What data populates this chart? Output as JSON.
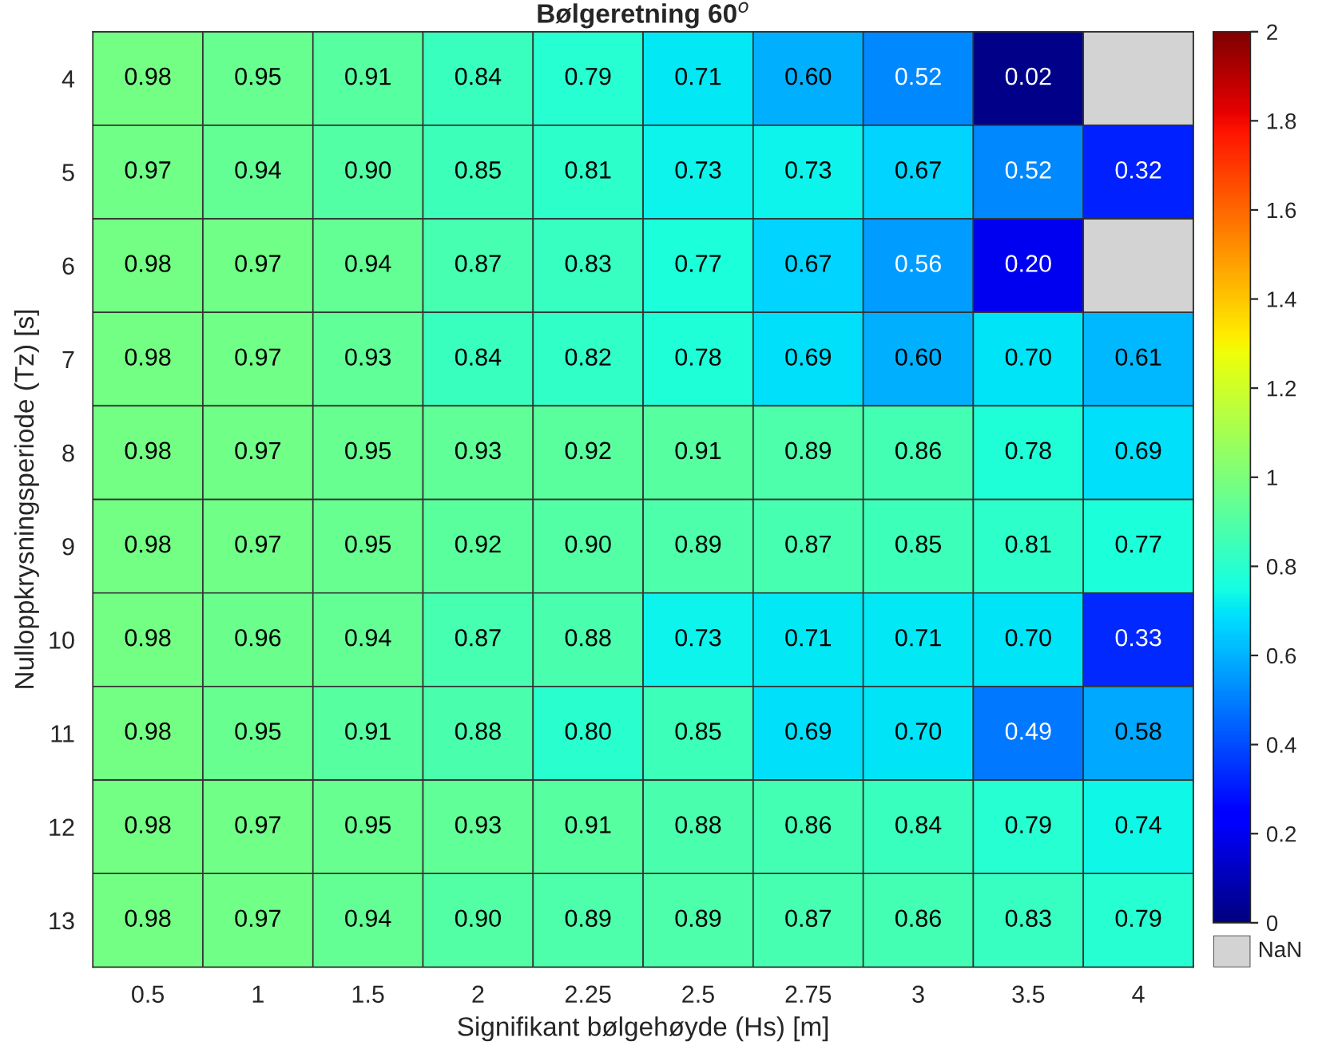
{
  "chart_data": {
    "type": "heatmap",
    "title": "Bølgeretning 60$^{o}$",
    "xlabel": "Signifikant bølgehøyde (Hs) [m]",
    "ylabel": "Nulloppkrysningsperiode (Tz) [s]",
    "categories": [
      "0.5",
      "1",
      "1.5",
      "2",
      "2.25",
      "2.5",
      "2.75",
      "3",
      "3.5",
      "4"
    ],
    "y_categories": [
      "4",
      "5",
      "6",
      "7",
      "8",
      "9",
      "10",
      "11",
      "12",
      "13"
    ],
    "cells": [
      [
        0.98,
        0.95,
        0.91,
        0.84,
        0.79,
        0.71,
        0.6,
        0.52,
        0.02,
        null
      ],
      [
        0.97,
        0.94,
        0.9,
        0.85,
        0.81,
        0.73,
        0.73,
        0.67,
        0.52,
        0.32
      ],
      [
        0.98,
        0.97,
        0.94,
        0.87,
        0.83,
        0.77,
        0.67,
        0.56,
        0.2,
        null
      ],
      [
        0.98,
        0.97,
        0.93,
        0.84,
        0.82,
        0.78,
        0.69,
        0.6,
        0.7,
        0.61
      ],
      [
        0.98,
        0.97,
        0.95,
        0.93,
        0.92,
        0.91,
        0.89,
        0.86,
        0.78,
        0.69
      ],
      [
        0.98,
        0.97,
        0.95,
        0.92,
        0.9,
        0.89,
        0.87,
        0.85,
        0.81,
        0.77
      ],
      [
        0.98,
        0.96,
        0.94,
        0.87,
        0.88,
        0.73,
        0.71,
        0.71,
        0.7,
        0.33
      ],
      [
        0.98,
        0.95,
        0.91,
        0.88,
        0.8,
        0.85,
        0.69,
        0.7,
        0.49,
        0.58
      ],
      [
        0.98,
        0.97,
        0.95,
        0.93,
        0.91,
        0.88,
        0.86,
        0.84,
        0.79,
        0.74
      ],
      [
        0.98,
        0.97,
        0.94,
        0.9,
        0.89,
        0.89,
        0.87,
        0.86,
        0.83,
        0.79
      ]
    ],
    "cell_labels": [
      [
        "0.98",
        "0.95",
        "0.91",
        "0.84",
        "0.79",
        "0.71",
        "0.60",
        "0.52",
        "0.02",
        null
      ],
      [
        "0.97",
        "0.94",
        "0.90",
        "0.85",
        "0.81",
        "0.73",
        "0.73",
        "0.67",
        "0.52",
        "0.32"
      ],
      [
        "0.98",
        "0.97",
        "0.94",
        "0.87",
        "0.83",
        "0.77",
        "0.67",
        "0.56",
        "0.20",
        null
      ],
      [
        "0.98",
        "0.97",
        "0.93",
        "0.84",
        "0.82",
        "0.78",
        "0.69",
        "0.60",
        "0.70",
        "0.61"
      ],
      [
        "0.98",
        "0.97",
        "0.95",
        "0.93",
        "0.92",
        "0.91",
        "0.89",
        "0.86",
        "0.78",
        "0.69"
      ],
      [
        "0.98",
        "0.97",
        "0.95",
        "0.92",
        "0.90",
        "0.89",
        "0.87",
        "0.85",
        "0.81",
        "0.77"
      ],
      [
        "0.98",
        "0.96",
        "0.94",
        "0.87",
        "0.88",
        "0.73",
        "0.71",
        "0.71",
        "0.70",
        "0.33"
      ],
      [
        "0.98",
        "0.95",
        "0.91",
        "0.88",
        "0.80",
        "0.85",
        "0.69",
        "0.70",
        "0.49",
        "0.58"
      ],
      [
        "0.98",
        "0.97",
        "0.95",
        "0.93",
        "0.91",
        "0.88",
        "0.86",
        "0.84",
        "0.79",
        "0.74"
      ],
      [
        "0.98",
        "0.97",
        "0.94",
        "0.90",
        "0.89",
        "0.89",
        "0.87",
        "0.86",
        "0.83",
        "0.79"
      ]
    ],
    "clim": [
      0,
      2
    ],
    "cticks": [
      0,
      0.2,
      0.4,
      0.6,
      0.8,
      1,
      1.2,
      1.4,
      1.6,
      1.8,
      2
    ],
    "data_labels": true,
    "annotations": [
      "NaN"
    ]
  }
}
